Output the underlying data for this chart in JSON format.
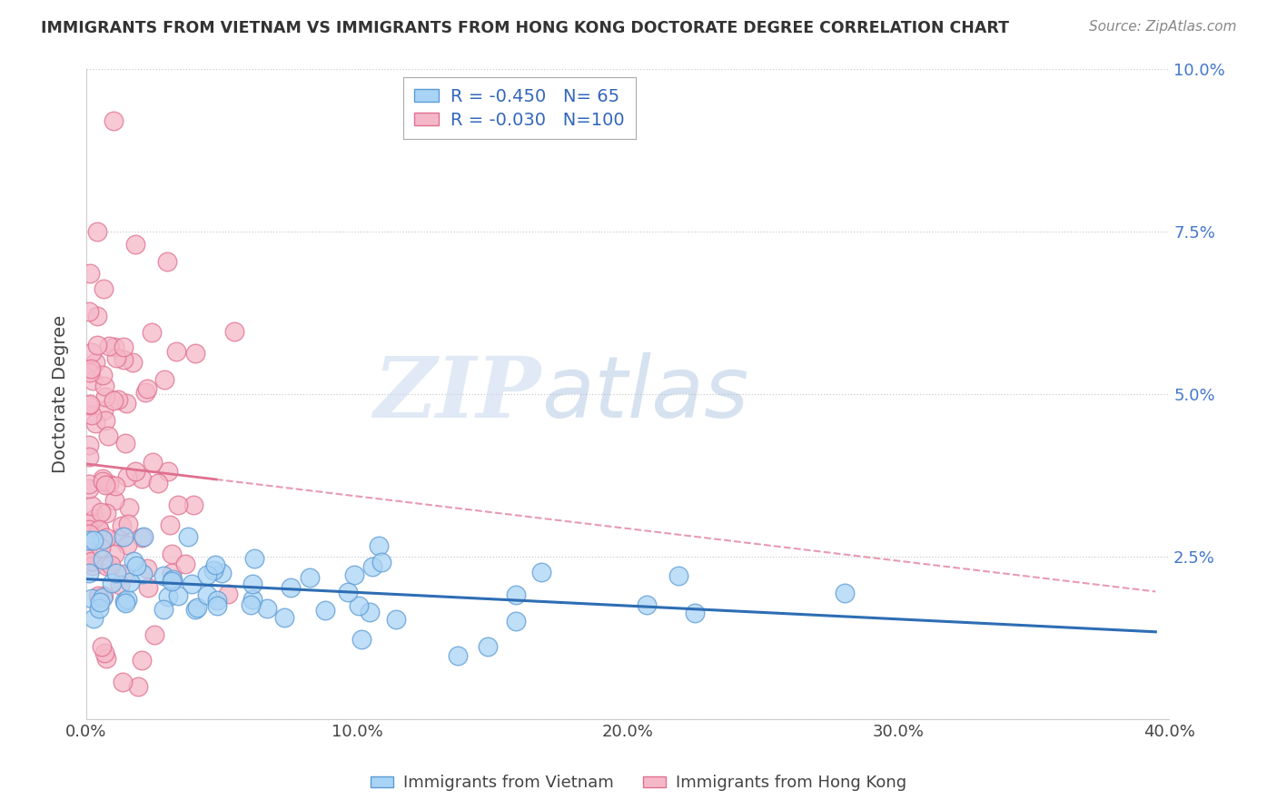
{
  "title": "IMMIGRANTS FROM VIETNAM VS IMMIGRANTS FROM HONG KONG DOCTORATE DEGREE CORRELATION CHART",
  "source": "Source: ZipAtlas.com",
  "ylabel": "Doctorate Degree",
  "xlim": [
    0.0,
    0.4
  ],
  "ylim": [
    0.0,
    0.1
  ],
  "xtick_vals": [
    0.0,
    0.1,
    0.2,
    0.3,
    0.4
  ],
  "xtick_labels": [
    "0.0%",
    "10.0%",
    "20.0%",
    "30.0%",
    "40.0%"
  ],
  "ytick_vals": [
    0.0,
    0.025,
    0.05,
    0.075,
    0.1
  ],
  "ytick_labels": [
    "",
    "2.5%",
    "5.0%",
    "7.5%",
    "10.0%"
  ],
  "r_vietnam": -0.45,
  "n_vietnam": 65,
  "r_hongkong": -0.03,
  "n_hongkong": 100,
  "color_vietnam": "#aad4f5",
  "color_hongkong": "#f5b8c8",
  "edge_vietnam": "#5b9bd5",
  "edge_hongkong": "#e07090",
  "line_color_vietnam": "#2e6db4",
  "line_color_hongkong": "#e07090",
  "watermark_zip": "ZIP",
  "watermark_atlas": "atlas",
  "legend_label_vietnam": "Immigrants from Vietnam",
  "legend_label_hongkong": "Immigrants from Hong Kong"
}
